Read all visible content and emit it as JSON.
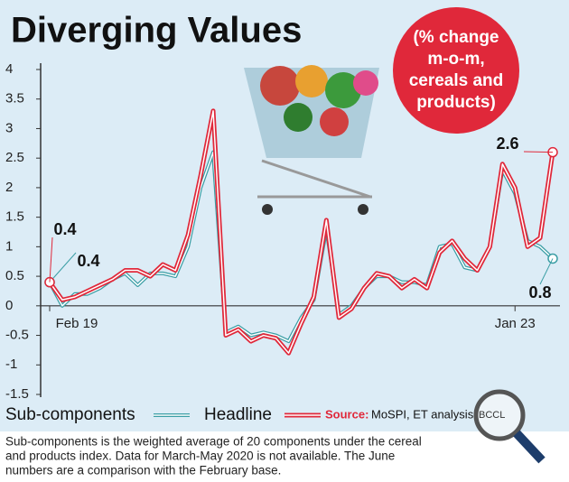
{
  "chart_data": {
    "type": "line",
    "title": "Diverging Values",
    "badge": [
      "(% change",
      "m-o-m,",
      "cereals and",
      "products)"
    ],
    "source_label": "Source:",
    "source": "MoSPI, ET analysis",
    "watermark": "BCCL",
    "footnote": [
      "Sub-components is the weighted average of 20 components under the cereal",
      "and products index. Data for March-May 2020 is not available. The June",
      "numbers are a comparison with the February base."
    ],
    "categories": [
      "Feb 19",
      null,
      null,
      null,
      null,
      null,
      null,
      null,
      null,
      null,
      null,
      null,
      null,
      null,
      null,
      null,
      null,
      null,
      null,
      null,
      null,
      null,
      null,
      null,
      null,
      null,
      null,
      null,
      null,
      null,
      null,
      null,
      null,
      null,
      null,
      null,
      null,
      "Jan 23",
      null,
      null,
      null
    ],
    "series": [
      {
        "name": "Sub-components",
        "color": "#3a9ea5",
        "values": [
          0.4,
          0.0,
          0.2,
          0.2,
          0.3,
          0.45,
          0.55,
          0.35,
          0.55,
          0.55,
          0.5,
          1.0,
          2.0,
          2.6,
          -0.45,
          -0.35,
          -0.5,
          -0.45,
          -0.5,
          -0.6,
          -0.2,
          0.1,
          1.3,
          -0.15,
          0.0,
          0.3,
          0.5,
          0.5,
          0.4,
          0.4,
          0.35,
          1.0,
          1.05,
          0.65,
          0.6,
          1.0,
          2.3,
          1.9,
          1.1,
          1.0,
          0.8
        ],
        "value_labels": [
          "0.4",
          null,
          null,
          null,
          null,
          null,
          null,
          null,
          null,
          null,
          null,
          null,
          null,
          null,
          null,
          null,
          null,
          null,
          null,
          null,
          null,
          null,
          null,
          null,
          null,
          null,
          null,
          null,
          null,
          null,
          null,
          null,
          null,
          null,
          null,
          null,
          null,
          null,
          null,
          null,
          "0.8"
        ]
      },
      {
        "name": "Headline",
        "color": "#e0283a",
        "values": [
          0.4,
          0.1,
          0.15,
          0.25,
          0.35,
          0.45,
          0.6,
          0.6,
          0.5,
          0.7,
          0.6,
          1.2,
          2.2,
          3.3,
          -0.5,
          -0.4,
          -0.6,
          -0.5,
          -0.55,
          -0.8,
          -0.3,
          0.15,
          1.45,
          -0.2,
          -0.05,
          0.3,
          0.55,
          0.5,
          0.3,
          0.45,
          0.3,
          0.9,
          1.1,
          0.8,
          0.6,
          1.0,
          2.4,
          2.0,
          1.0,
          1.15,
          2.6
        ],
        "value_labels": [
          "0.4",
          null,
          null,
          null,
          null,
          null,
          null,
          null,
          null,
          null,
          null,
          null,
          null,
          null,
          null,
          null,
          null,
          null,
          null,
          null,
          null,
          null,
          null,
          null,
          null,
          null,
          null,
          null,
          null,
          null,
          null,
          null,
          null,
          null,
          null,
          null,
          null,
          null,
          null,
          null,
          "2.6"
        ]
      }
    ],
    "ylim": [
      -1.5,
      4
    ],
    "yticks": [
      4,
      3.5,
      3,
      2.5,
      2,
      1.5,
      1,
      0.5,
      0,
      -0.5,
      -1,
      -1.5
    ]
  }
}
